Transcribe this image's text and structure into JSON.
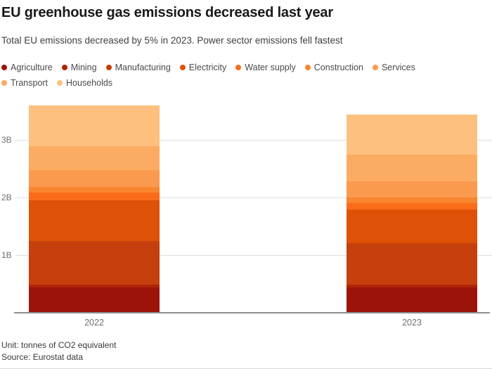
{
  "header": {
    "title": "EU greenhouse gas emissions decreased last year",
    "subtitle": "Total EU emissions decreased by 5% in 2023. Power sector emissions fell fastest"
  },
  "footer": {
    "unit_note": "Unit: tonnes of CO2 equivalent",
    "source_note": "Source: Eurostat data"
  },
  "chart_data": {
    "type": "bar",
    "stacked": true,
    "title": "EU greenhouse gas emissions decreased last year",
    "xlabel": "",
    "ylabel": "",
    "unit": "tonnes of CO2 equivalent",
    "categories": [
      "2022",
      "2023"
    ],
    "series": [
      {
        "name": "Agriculture",
        "color": "#9c1409",
        "values": [
          0.44,
          0.44
        ]
      },
      {
        "name": "Mining",
        "color": "#ae2408",
        "values": [
          0.05,
          0.05
        ]
      },
      {
        "name": "Manufacturing",
        "color": "#c5400c",
        "values": [
          0.76,
          0.72
        ]
      },
      {
        "name": "Electricity",
        "color": "#de5207",
        "values": [
          0.71,
          0.58
        ]
      },
      {
        "name": "Water supply",
        "color": "#fa6c1a",
        "values": [
          0.13,
          0.11
        ]
      },
      {
        "name": "Construction",
        "color": "#f8862f",
        "values": [
          0.1,
          0.1
        ]
      },
      {
        "name": "Services",
        "color": "#fa9a4e",
        "values": [
          0.29,
          0.28
        ]
      },
      {
        "name": "Transport",
        "color": "#fcab63",
        "values": [
          0.42,
          0.46
        ]
      },
      {
        "name": "Households",
        "color": "#fdc07e",
        "values": [
          0.71,
          0.7
        ]
      }
    ],
    "totals": [
      3.61,
      3.44
    ],
    "ylim": [
      0,
      3.65
    ],
    "yticks": [
      {
        "value": 1,
        "label": "1B"
      },
      {
        "value": 2,
        "label": "2B"
      },
      {
        "value": 3,
        "label": "3B"
      }
    ],
    "grid": "horizontal",
    "legend_position": "top"
  }
}
